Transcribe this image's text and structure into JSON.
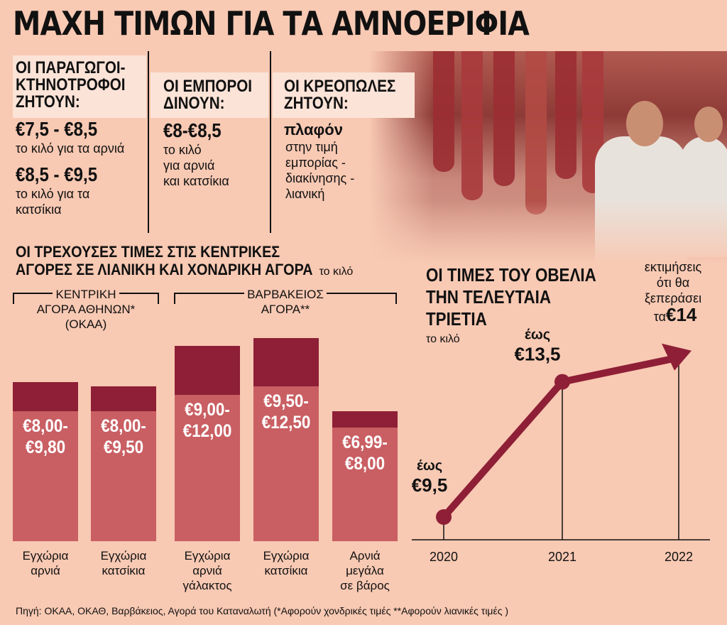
{
  "title": "ΜΑΧΗ ΤΙΜΩΝ ΓΙΑ ΤΑ ΑΜΝΟΕΡΙΦΙΑ",
  "columns": [
    {
      "header": [
        "ΟΙ ΠΑΡΑΓΩΓΟΙ-",
        "ΚΤΗΝΟΤΡΟΦΟΙ",
        "ΖΗΤΟΥΝ:"
      ],
      "entries": [
        {
          "price": "€7,5 - €8,5",
          "text": [
            "το κιλό για τα αρνιά"
          ]
        },
        {
          "price": "€8,5 - €9,5",
          "text": [
            "το κιλό για τα",
            "κατσίκια"
          ]
        }
      ]
    },
    {
      "header": [
        "ΟΙ ΕΜΠΟΡΟΙ",
        "ΔΙΝΟΥΝ:"
      ],
      "entries": [
        {
          "price": "€8-€8,5",
          "text": [
            "το κιλό",
            "για αρνιά",
            "και κατσίκια"
          ]
        }
      ]
    },
    {
      "header": [
        "ΟΙ ΚΡΕΟΠΩΛΕΣ",
        "ΖΗΤΟΥΝ:"
      ],
      "entries": [
        {
          "price": "πλαφόν",
          "text": [
            "στην τιμή",
            "εμπορίας -",
            "διακίνησης -",
            "λιανική"
          ]
        }
      ]
    }
  ],
  "chart_data": [
    {
      "type": "bar",
      "title": [
        "ΟΙ ΤΡΕΧΟΥΣΕΣ ΤΙΜΕΣ ΣΤΙΣ ΚΕΝΤΡΙΚΕΣ",
        "ΑΓΟΡΕΣ ΣΕ ΛΙΑΝΙΚΗ ΚΑΙ ΧΟΝΔΡΙΚΗ ΑΓΟΡΑ"
      ],
      "unit": "το κιλό",
      "groups": [
        {
          "label": [
            "ΚΕΝΤΡΙΚΗ",
            "ΑΓΟΡΑ ΑΘΗΝΩΝ*",
            "(ΟΚΑΑ)"
          ]
        },
        {
          "label": [
            "ΒΑΡΒΑΚΕΙΟΣ",
            "ΑΓΟΡΑ**"
          ]
        }
      ],
      "categories": [
        {
          "label": [
            "Εγχώρια",
            "αρνιά"
          ],
          "min": 8.0,
          "max": 9.8,
          "value_label": [
            "€8,00-",
            "€9,80"
          ]
        },
        {
          "label": [
            "Εγχώρια",
            "κατσίκια"
          ],
          "min": 8.0,
          "max": 9.5,
          "value_label": [
            "€8,00-",
            "€9,50"
          ]
        },
        {
          "label": [
            "Εγχώρια",
            "αρνιά",
            "γάλακτος"
          ],
          "min": 9.0,
          "max": 12.0,
          "value_label": [
            "€9,00-",
            "€12,00"
          ]
        },
        {
          "label": [
            "Εγχώρια",
            "κατσίκια"
          ],
          "min": 9.5,
          "max": 12.5,
          "value_label": [
            "€9,50-",
            "€12,50"
          ]
        },
        {
          "label": [
            "Αρνιά",
            "μεγάλα",
            "σε βάρος"
          ],
          "min": 6.99,
          "max": 8.0,
          "value_label": [
            "€6,99-",
            "€8,00"
          ]
        }
      ],
      "colors": {
        "min_part": "#c95f63",
        "range_part": "#8e1f36"
      }
    },
    {
      "type": "line",
      "title": [
        "ΟΙ ΤΙΜΕΣ ΤΟΥ ΟΒΕΛΙΑ",
        "ΤΗΝ ΤΕΛΕΥΤΑΙΑ",
        "ΤΡΙΕΤΙΑ"
      ],
      "unit": "το κιλό",
      "x": [
        "2020",
        "2021",
        "2022"
      ],
      "y": [
        9.5,
        13.5,
        14
      ],
      "point_labels": [
        {
          "top": "έως",
          "value": "€9,5"
        },
        {
          "top": "έως",
          "value": "€13,5"
        }
      ],
      "annotation": {
        "lines": [
          "εκτιμήσεις",
          "ότι θα",
          "ξεπεράσει"
        ],
        "prefix": "τα",
        "value": "€14"
      },
      "color": "#8e1f36"
    }
  ],
  "source": "Πηγή: ΟΚΑΑ, ΟΚΑΘ, Βαρβάκειος, Αγορά του Καταναλωτή (*Αφορούν χονδρικές τιμές **Αφορούν λιανικές τιμές )"
}
